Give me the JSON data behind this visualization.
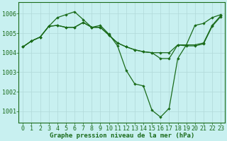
{
  "title": "Graphe pression niveau de la mer (hPa)",
  "background_color": "#c8f0f0",
  "grid_color": "#b0d8d8",
  "line_color": "#1a6b1a",
  "xlim": [
    -0.5,
    23.5
  ],
  "ylim": [
    1000.4,
    1006.6
  ],
  "yticks": [
    1001,
    1002,
    1003,
    1004,
    1005,
    1006
  ],
  "xticks": [
    0,
    1,
    2,
    3,
    4,
    5,
    6,
    7,
    8,
    9,
    10,
    11,
    12,
    13,
    14,
    15,
    16,
    17,
    18,
    19,
    20,
    21,
    22,
    23
  ],
  "series1_x": [
    0,
    1,
    2,
    3,
    4,
    5,
    6,
    7,
    8,
    9,
    10,
    11,
    12,
    13,
    14,
    15,
    16,
    17,
    18,
    19,
    20,
    21,
    22,
    23
  ],
  "series1_y": [
    1004.3,
    1004.6,
    1004.8,
    1005.35,
    1005.8,
    1005.95,
    1006.1,
    1005.7,
    1005.3,
    1005.4,
    1004.95,
    1004.35,
    1003.1,
    1002.4,
    1002.3,
    1001.05,
    1000.7,
    1001.15,
    1003.7,
    1004.4,
    1005.4,
    1005.5,
    1005.8,
    1005.95
  ],
  "series2_x": [
    0,
    1,
    2,
    3,
    4,
    5,
    6,
    7,
    8,
    9,
    10,
    11,
    12,
    13,
    14,
    15,
    16,
    17,
    18,
    19,
    20,
    21,
    22,
    23
  ],
  "series2_y": [
    1004.3,
    1004.6,
    1004.8,
    1005.35,
    1005.4,
    1005.3,
    1005.3,
    1005.55,
    1005.3,
    1005.3,
    1004.9,
    1004.5,
    1004.3,
    1004.15,
    1004.05,
    1004.0,
    1004.0,
    1004.0,
    1004.4,
    1004.4,
    1004.4,
    1004.5,
    1005.4,
    1005.9
  ],
  "series3_x": [
    0,
    1,
    2,
    3,
    4,
    5,
    6,
    7,
    8,
    9,
    10,
    11,
    12,
    13,
    14,
    15,
    16,
    17,
    18,
    19,
    20,
    21,
    22,
    23
  ],
  "series3_y": [
    1004.3,
    1004.6,
    1004.8,
    1005.35,
    1005.4,
    1005.3,
    1005.3,
    1005.55,
    1005.3,
    1005.3,
    1004.9,
    1004.5,
    1004.3,
    1004.15,
    1004.05,
    1004.0,
    1003.7,
    1003.7,
    1004.4,
    1004.35,
    1004.35,
    1004.45,
    1005.35,
    1005.85
  ],
  "xlabel_fontsize": 6,
  "ylabel_fontsize": 6,
  "title_fontsize": 6.5
}
